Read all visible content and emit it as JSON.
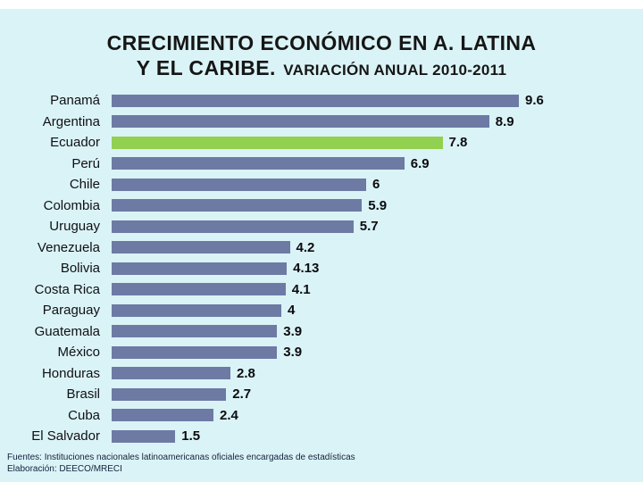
{
  "title": {
    "line1": "CRECIMIENTO ECONÓMICO EN A. LATINA",
    "line2_large": "Y EL CARIBE.",
    "line2_small": "VARIACIÓN ANUAL 2010-2011"
  },
  "chart_data": {
    "type": "bar",
    "orientation": "horizontal",
    "title": "CRECIMIENTO ECONÓMICO EN A. LATINA Y EL CARIBE. VARIACIÓN ANUAL 2010-2011",
    "categories": [
      "Panamá",
      "Argentina",
      "Ecuador",
      "Perú",
      "Chile",
      "Colombia",
      "Uruguay",
      "Venezuela",
      "Bolivia",
      "Costa Rica",
      "Paraguay",
      "Guatemala",
      "México",
      "Honduras",
      "Brasil",
      "Cuba",
      "El Salvador"
    ],
    "values": [
      9.6,
      8.9,
      7.8,
      6.9,
      6,
      5.9,
      5.7,
      4.2,
      4.13,
      4.1,
      4,
      3.9,
      3.9,
      2.8,
      2.7,
      2.4,
      1.5
    ],
    "value_labels": [
      "9.6",
      "8.9",
      "7.8",
      "6.9",
      "6",
      "5.9",
      "5.7",
      "4.2",
      "4.13",
      "4.1",
      "4",
      "3.9",
      "3.9",
      "2.8",
      "2.7",
      "2.4",
      "1.5"
    ],
    "highlight_index": 2,
    "highlight_category": "Ecuador",
    "bar_color": "#6d7aa4",
    "highlight_color": "#92d050",
    "xlim": [
      0,
      10
    ],
    "grid": false,
    "legend": false,
    "xlabel": "",
    "ylabel": ""
  },
  "footer": {
    "line1": "Fuentes: Instituciones nacionales latinoamericanas oficiales encargadas de estadísticas",
    "line2": "Elaboración: DEECO/MRECI"
  },
  "colors": {
    "background": "#daf3f6",
    "top_strip": "#ffffff",
    "bar": "#6d7aa4",
    "highlight": "#92d050",
    "title_text": "#161616",
    "label_text": "#101014",
    "footer_text": "#14213d"
  }
}
